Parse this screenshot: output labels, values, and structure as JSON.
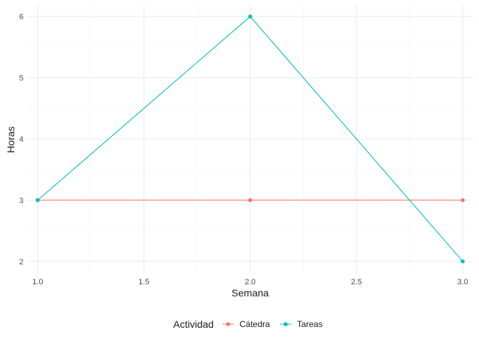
{
  "chart_data": {
    "type": "line",
    "xlabel": "Semana",
    "ylabel": "Horas",
    "xlim": [
      0.95,
      3.05
    ],
    "ylim": [
      1.8,
      6.2
    ],
    "x_ticks": [
      1.0,
      1.5,
      2.0,
      2.5,
      3.0
    ],
    "x_tick_labels": [
      "1.0",
      "1.5",
      "2.0",
      "2.5",
      "3.0"
    ],
    "y_ticks": [
      2,
      3,
      4,
      5,
      6
    ],
    "y_tick_labels": [
      "2",
      "3",
      "4",
      "5",
      "6"
    ],
    "grid": true,
    "legend": {
      "title": "Actividad",
      "position": "bottom"
    },
    "series": [
      {
        "name": "Cátedra",
        "color": "#F8766D",
        "x": [
          1.0,
          2.0,
          3.0
        ],
        "y": [
          3,
          3,
          3
        ]
      },
      {
        "name": "Tareas",
        "color": "#00BFC4",
        "x": [
          1.0,
          2.0,
          3.0
        ],
        "y": [
          3,
          6,
          2
        ]
      }
    ]
  }
}
